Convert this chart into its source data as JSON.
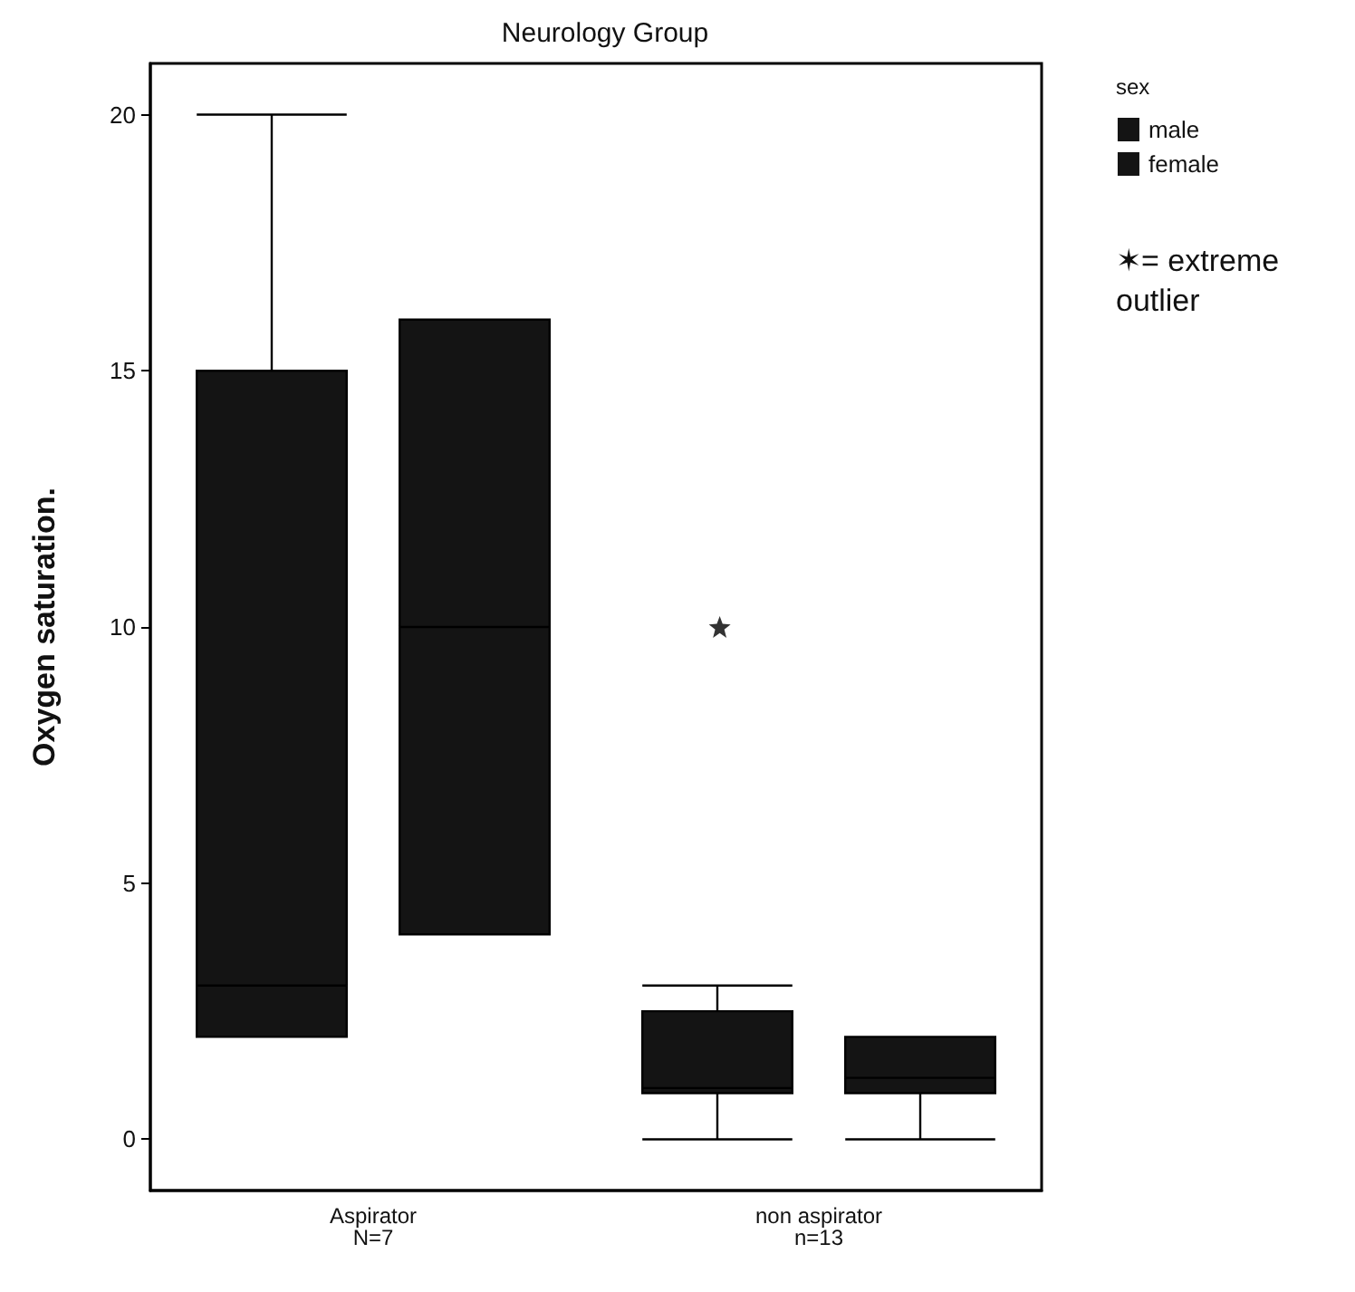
{
  "chart_data": {
    "type": "box",
    "title": "Neurology Group",
    "ylabel": "Oxygen saturation.",
    "legend_title": "sex",
    "categories": [
      "Aspirator\nN=7",
      "non aspirator\nn=13"
    ],
    "series": [
      {
        "name": "male",
        "color": "#141414",
        "boxes": [
          {
            "low": 2,
            "q1": 2,
            "median": 3,
            "q3": 15,
            "high": 20
          },
          {
            "low": 0,
            "q1": 0.9,
            "median": 1,
            "q3": 2.5,
            "high": 3,
            "outliers": [
              10
            ]
          }
        ]
      },
      {
        "name": "female",
        "color": "#141414",
        "boxes": [
          {
            "low": 4,
            "q1": 4,
            "median": 10,
            "q3": 16,
            "high": 16
          },
          {
            "low": 0,
            "q1": 0.9,
            "median": 1.2,
            "q3": 2,
            "high": 2
          }
        ]
      }
    ],
    "ylim": [
      -1,
      21
    ],
    "yticks": [
      0,
      5,
      10,
      15,
      20
    ],
    "grid": false,
    "legend": "top right",
    "annotations": [
      "✶= extreme outlier"
    ]
  }
}
